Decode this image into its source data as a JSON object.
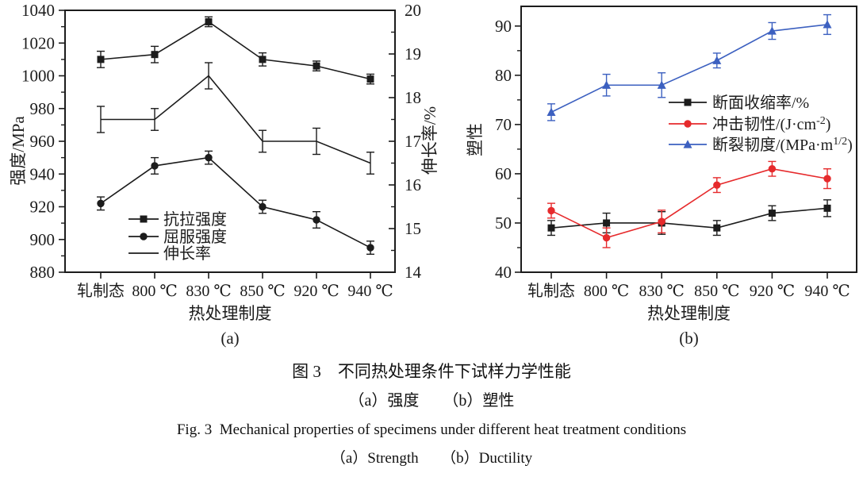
{
  "figure_caption": {
    "line1": "图 3　不同热处理条件下试样力学性能",
    "line2": "（a）强度　　（b）塑性",
    "line3": "Fig. 3  Mechanical properties of specimens under different heat treatment conditions",
    "line4": "（a）Strength　　（b）Ductility"
  },
  "chart_data": [
    {
      "type": "line",
      "panel_label": "(a)",
      "xlabel": "热处理制度",
      "categories": [
        "轧制态",
        "800 ℃",
        "830 ℃",
        "850 ℃",
        "920 ℃",
        "940 ℃"
      ],
      "axes": {
        "left": {
          "label": "强度/MPa",
          "min": 880,
          "max": 1040,
          "ticks": [
            880,
            900,
            920,
            940,
            960,
            980,
            1000,
            1020,
            1040
          ],
          "minor_step": 10
        },
        "right": {
          "label": "伸长率/%",
          "min": 14,
          "max": 20,
          "ticks": [
            14,
            15,
            16,
            17,
            18,
            19,
            20
          ],
          "minor_step": 0.5
        }
      },
      "series": [
        {
          "name_parts": [
            {
              "t": "抗拉强度"
            }
          ],
          "axis": "left",
          "marker": "square",
          "color": "#1c1c1c",
          "values": [
            1010,
            1013,
            1033,
            1010,
            1006,
            998
          ],
          "errors": [
            5,
            5,
            3,
            4,
            3,
            3
          ]
        },
        {
          "name_parts": [
            {
              "t": "屈服强度"
            }
          ],
          "axis": "left",
          "marker": "circle",
          "color": "#1c1c1c",
          "values": [
            922,
            945,
            950,
            920,
            912,
            895
          ],
          "errors": [
            4,
            5,
            4,
            4,
            5,
            4
          ]
        },
        {
          "name_parts": [
            {
              "t": "伸长率"
            }
          ],
          "axis": "right",
          "marker": "none",
          "color": "#1c1c1c",
          "values": [
            17.5,
            17.5,
            18.5,
            17,
            17,
            16.5
          ],
          "errors": [
            0.3,
            0.25,
            0.3,
            0.25,
            0.3,
            0.25
          ]
        }
      ]
    },
    {
      "type": "line",
      "panel_label": "(b)",
      "xlabel": "热处理制度",
      "categories": [
        "轧制态",
        "800 ℃",
        "830 ℃",
        "850 ℃",
        "920 ℃",
        "940 ℃"
      ],
      "axes": {
        "left": {
          "label": "塑性",
          "min": 40,
          "max": 94,
          "ticks": [
            40,
            50,
            60,
            70,
            80,
            90
          ],
          "minor_step": 5
        }
      },
      "series": [
        {
          "name_parts": [
            {
              "t": "断面收缩率/%"
            }
          ],
          "axis": "left",
          "marker": "square",
          "color": "#1c1c1c",
          "values": [
            49,
            50,
            50,
            49,
            52,
            53
          ],
          "errors": [
            1.5,
            2,
            2.3,
            1.5,
            1.5,
            1.7
          ]
        },
        {
          "name_parts": [
            {
              "t": "冲击韧性/(J·cm"
            },
            {
              "t": "-2",
              "sup": true
            },
            {
              "t": ")"
            }
          ],
          "axis": "left",
          "marker": "circle",
          "color": "#e62a2c",
          "values": [
            52.5,
            47,
            50.3,
            57.7,
            61,
            59
          ],
          "errors": [
            1.5,
            2,
            2.3,
            1.5,
            1.5,
            2
          ]
        },
        {
          "name_parts": [
            {
              "t": "断裂韧度/(MPa·m"
            },
            {
              "t": "1/2",
              "sup": true
            },
            {
              "t": ")"
            }
          ],
          "axis": "left",
          "marker": "triangle",
          "color": "#3c60c0",
          "values": [
            72.5,
            78,
            78,
            83,
            89,
            90.3
          ],
          "errors": [
            1.7,
            2.2,
            2.5,
            1.5,
            1.7,
            2
          ]
        }
      ]
    }
  ]
}
